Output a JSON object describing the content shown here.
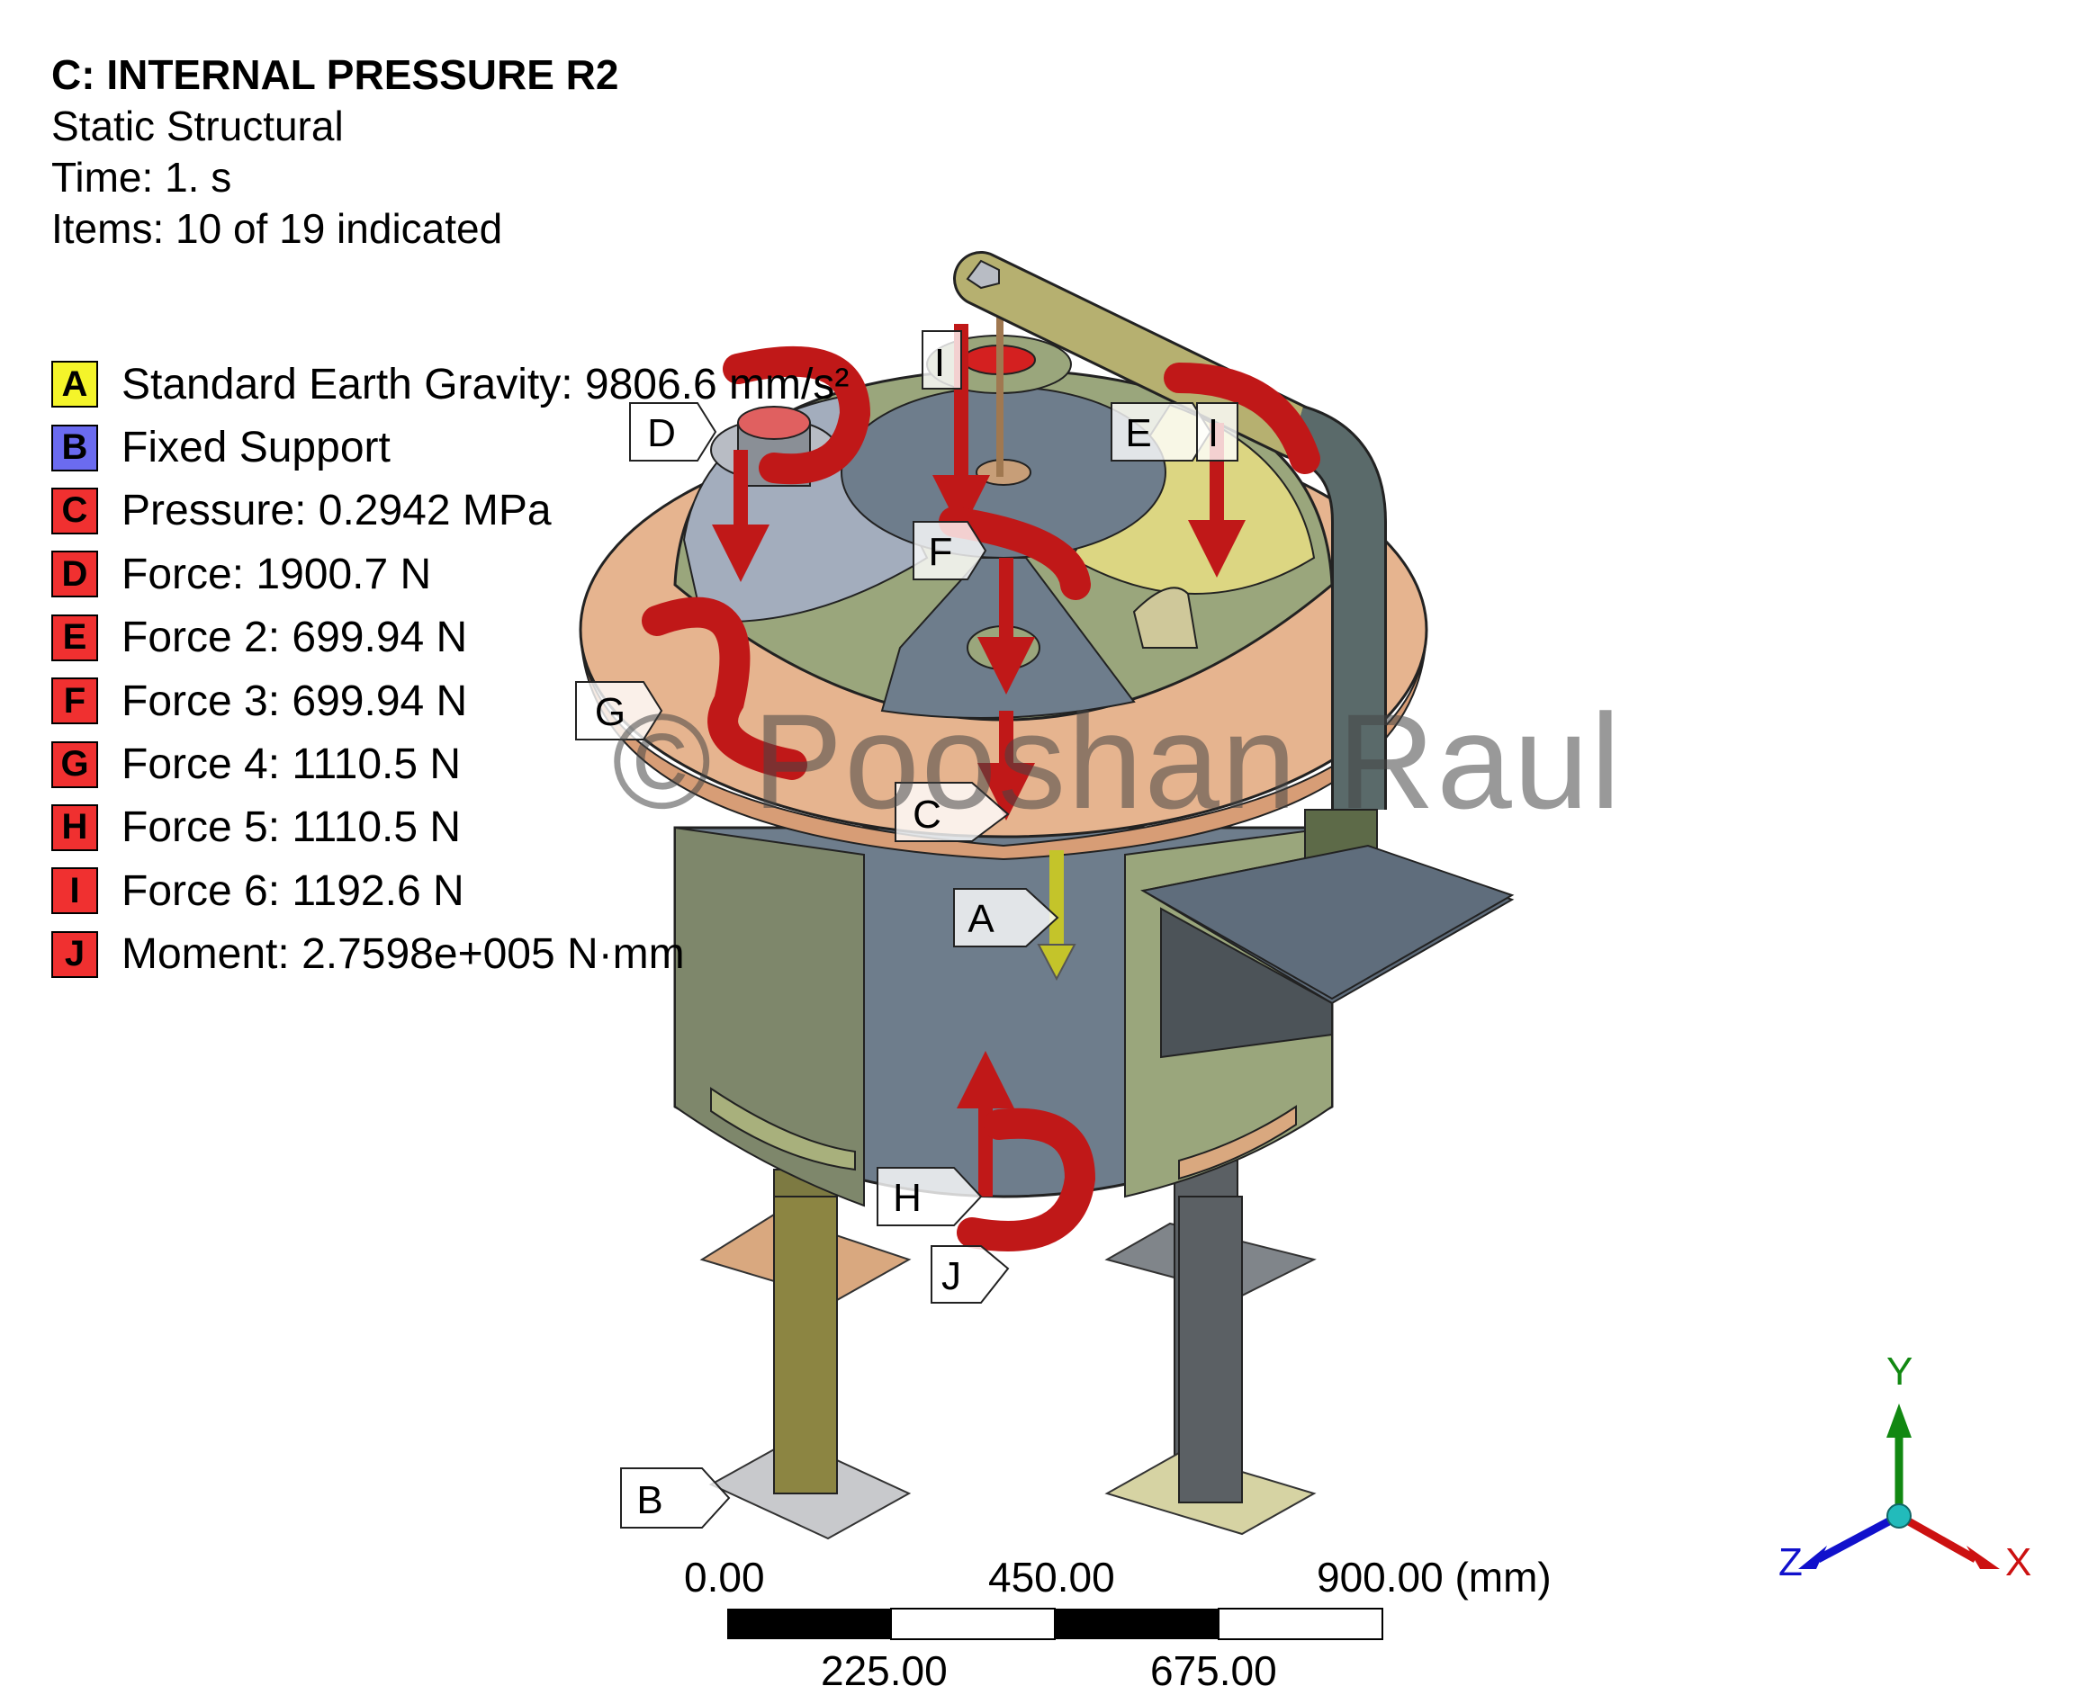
{
  "header": {
    "title": "C: INTERNAL PRESSURE R2",
    "analysis_type": "Static Structural",
    "time": "Time: 1. s",
    "items": "Items: 10 of 19 indicated"
  },
  "legend": [
    {
      "key": "A",
      "label": "Standard Earth Gravity: 9806.6 mm/s²",
      "color": "#f4f42a"
    },
    {
      "key": "B",
      "label": "Fixed Support",
      "color": "#6b6bf0"
    },
    {
      "key": "C",
      "label": "Pressure: 0.2942 MPa",
      "color": "#f03030"
    },
    {
      "key": "D",
      "label": "Force: 1900.7 N",
      "color": "#f03030"
    },
    {
      "key": "E",
      "label": "Force 2: 699.94 N",
      "color": "#f03030"
    },
    {
      "key": "F",
      "label": "Force 3: 699.94 N",
      "color": "#f03030"
    },
    {
      "key": "G",
      "label": "Force 4: 1110.5 N",
      "color": "#f03030"
    },
    {
      "key": "H",
      "label": "Force 5: 1110.5 N",
      "color": "#f03030"
    },
    {
      "key": "I",
      "label": "Force 6: 1192.6 N",
      "color": "#f03030"
    },
    {
      "key": "J",
      "label": "Moment: 2.7598e+005 N·mm",
      "color": "#f03030"
    }
  ],
  "model_tags": {
    "A": "A",
    "B": "B",
    "C": "C",
    "D": "D",
    "E": "E",
    "F": "F",
    "G": "G",
    "H": "H",
    "I": "I",
    "J": "J"
  },
  "watermark": "© Pooshan Raul",
  "scale_bar": {
    "top_labels": [
      "0.00",
      "450.00",
      "900.00 (mm)"
    ],
    "bottom_labels": [
      "225.00",
      "675.00"
    ]
  },
  "triad": {
    "x": "X",
    "y": "Y",
    "z": "Z",
    "x_color": "#cc1111",
    "y_color": "#118811",
    "z_color": "#1111cc"
  },
  "colors": {
    "flange": "#e6b48f",
    "shell_blue": "#6e7d8c",
    "shell_green": "#9aa67c",
    "load_red": "#d42020",
    "gravity_yellow": "#d4d41a"
  }
}
